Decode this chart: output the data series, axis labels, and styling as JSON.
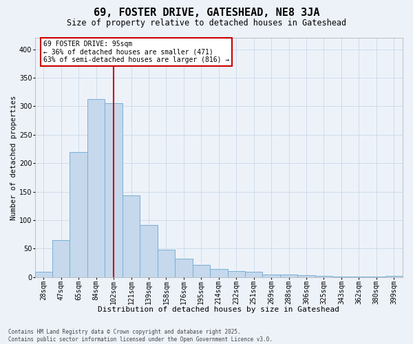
{
  "title": "69, FOSTER DRIVE, GATESHEAD, NE8 3JA",
  "subtitle": "Size of property relative to detached houses in Gateshead",
  "xlabel": "Distribution of detached houses by size in Gateshead",
  "ylabel": "Number of detached properties",
  "categories": [
    "28sqm",
    "47sqm",
    "65sqm",
    "84sqm",
    "102sqm",
    "121sqm",
    "139sqm",
    "158sqm",
    "176sqm",
    "195sqm",
    "214sqm",
    "232sqm",
    "251sqm",
    "269sqm",
    "288sqm",
    "306sqm",
    "325sqm",
    "343sqm",
    "362sqm",
    "380sqm",
    "399sqm"
  ],
  "bar_heights": [
    9,
    65,
    220,
    312,
    305,
    144,
    92,
    48,
    32,
    22,
    14,
    11,
    10,
    5,
    5,
    3,
    2,
    1,
    1,
    1,
    2
  ],
  "bar_color": "#c5d8ec",
  "bar_edge_color": "#7aafd4",
  "grid_color": "#c8d8e8",
  "background_color": "#edf2f9",
  "vline_x": 4,
  "vline_color": "#cc0000",
  "annotation_text": "69 FOSTER DRIVE: 95sqm\n← 36% of detached houses are smaller (471)\n63% of semi-detached houses are larger (816) →",
  "annotation_box_facecolor": "#ffffff",
  "annotation_box_edgecolor": "#cc0000",
  "footer_line1": "Contains HM Land Registry data © Crown copyright and database right 2025.",
  "footer_line2": "Contains public sector information licensed under the Open Government Licence v3.0.",
  "ylim": [
    0,
    420
  ],
  "yticks": [
    0,
    50,
    100,
    150,
    200,
    250,
    300,
    350,
    400
  ],
  "title_fontsize": 11,
  "subtitle_fontsize": 8.5,
  "xlabel_fontsize": 8,
  "ylabel_fontsize": 7.5,
  "tick_fontsize": 7,
  "ann_fontsize": 7,
  "footer_fontsize": 5.5
}
